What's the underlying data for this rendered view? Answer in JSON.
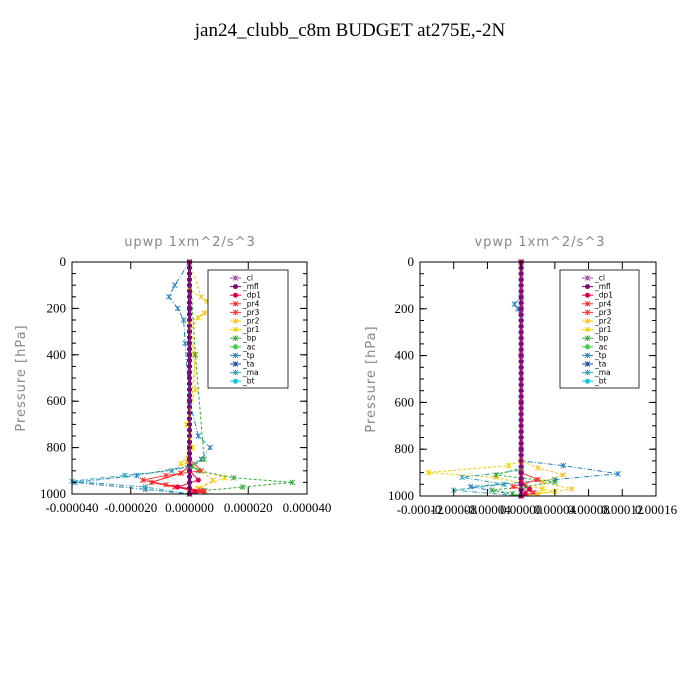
{
  "title": "jan24_clubb_c8m  BUDGET at275E,-2N",
  "ylabel": "Pressure [hPa]",
  "legend": [
    {
      "name": "_cl",
      "color": "#a64ca6",
      "marker": "+"
    },
    {
      "name": "_mfl",
      "color": "#7a0a7a",
      "marker": "o"
    },
    {
      "name": "_dp1",
      "color": "#e0004a",
      "marker": "o"
    },
    {
      "name": "_pr4",
      "color": "#ff2020",
      "marker": "*"
    },
    {
      "name": "_pr3",
      "color": "#ff3030",
      "marker": "x"
    },
    {
      "name": "_pr2",
      "color": "#ffc020",
      "marker": "x"
    },
    {
      "name": "_pr1",
      "color": "#f0d000",
      "marker": "*"
    },
    {
      "name": "_bp",
      "color": "#33aa33",
      "marker": "+"
    },
    {
      "name": "_ac",
      "color": "#44cc44",
      "marker": "o"
    },
    {
      "name": "_tp",
      "color": "#2080c0",
      "marker": "x"
    },
    {
      "name": "_ta",
      "color": "#1a4aa0",
      "marker": "+"
    },
    {
      "name": "_ma",
      "color": "#2aa0b0",
      "marker": "-"
    },
    {
      "name": "_bt",
      "color": "#00d0e0",
      "marker": "d"
    }
  ],
  "chart_data": [
    {
      "type": "line",
      "title": "upwp   1xm^2/s^3",
      "ylabel": "Pressure [hPa]",
      "ylim": [
        1000,
        0
      ],
      "xlim": [
        -4e-05,
        4e-05
      ],
      "xticks": [
        "-0.000040",
        "-0.000020",
        "0.000000",
        "0.000020",
        "0.000040"
      ],
      "yticks": [
        "0",
        "200",
        "400",
        "600",
        "800",
        "1000"
      ],
      "series": [
        {
          "name": "_cl",
          "x": [
            0,
            0,
            0,
            0,
            0,
            0
          ],
          "y": [
            0,
            200,
            400,
            600,
            800,
            1000
          ]
        },
        {
          "name": "_mfl",
          "x": [
            0,
            0,
            0,
            0,
            0,
            0
          ],
          "y": [
            0,
            200,
            400,
            600,
            800,
            1000
          ]
        },
        {
          "name": "_pr1",
          "x": [
            0,
            0,
            6e-06,
            8e-06,
            3e-06,
            0,
            1.5e-06,
            2e-06,
            -1e-06,
            1e-06,
            -3e-06,
            1.2e-05,
            3e-06,
            0
          ],
          "y": [
            0,
            120,
            170,
            200,
            240,
            300,
            400,
            550,
            700,
            800,
            870,
            930,
            975,
            1000
          ]
        },
        {
          "name": "_pr2",
          "x": [
            0,
            4e-06,
            7e-06,
            5e-06,
            0,
            2e-06,
            -1e-06,
            8e-06,
            3e-06,
            0
          ],
          "y": [
            0,
            150,
            190,
            220,
            260,
            400,
            860,
            940,
            980,
            1000
          ]
        },
        {
          "name": "_tp",
          "x": [
            0,
            -5e-06,
            -7e-06,
            -4e-06,
            -2e-06,
            -1.5e-06,
            0,
            3e-06,
            7e-06,
            4e-06,
            0,
            -1.8e-05,
            -3.9e-05,
            -1.5e-05,
            0
          ],
          "y": [
            0,
            100,
            150,
            200,
            250,
            350,
            600,
            750,
            800,
            850,
            880,
            920,
            950,
            980,
            1000
          ]
        },
        {
          "name": "_bp",
          "x": [
            0,
            2e-06,
            5e-06,
            1e-06,
            3e-06,
            1.5e-05,
            3.5e-05,
            1.8e-05,
            5e-06,
            0
          ],
          "y": [
            0,
            400,
            850,
            880,
            900,
            930,
            950,
            970,
            985,
            1000
          ]
        },
        {
          "name": "_pr3",
          "x": [
            0,
            0,
            4e-06,
            -8e-06,
            -1.6e-05,
            -8e-06,
            4e-06,
            0
          ],
          "y": [
            0,
            850,
            900,
            920,
            940,
            960,
            985,
            1000
          ]
        },
        {
          "name": "_pr4",
          "x": [
            0,
            0,
            -3e-06,
            -1.3e-05,
            -5e-06,
            5e-06,
            0
          ],
          "y": [
            0,
            880,
            910,
            950,
            970,
            990,
            1000
          ]
        },
        {
          "name": "_ma",
          "x": [
            0,
            0,
            -6e-06,
            -2.2e-05,
            -4e-05,
            -1.5e-05,
            0
          ],
          "y": [
            0,
            880,
            900,
            920,
            945,
            970,
            1000
          ]
        },
        {
          "name": "_dp1",
          "x": [
            0,
            0,
            3e-06,
            -4e-06,
            2e-06,
            0
          ],
          "y": [
            0,
            900,
            940,
            970,
            990,
            1000
          ]
        }
      ]
    },
    {
      "type": "line",
      "title": "vpwp   1xm^2/s^3",
      "ylabel": "Pressure [hPa]",
      "ylim": [
        1000,
        0
      ],
      "xlim": [
        -0.00012,
        0.00016
      ],
      "xticks": [
        "-0.00012",
        "-0.00008",
        "-0.00004",
        "0.00000",
        "0.00004",
        "0.00008",
        "0.00012",
        "0.00016"
      ],
      "yticks": [
        "0",
        "200",
        "400",
        "600",
        "800",
        "1000"
      ],
      "series": [
        {
          "name": "_cl",
          "x": [
            0,
            0,
            0,
            0,
            0,
            0
          ],
          "y": [
            0,
            200,
            400,
            600,
            800,
            1000
          ]
        },
        {
          "name": "_mfl",
          "x": [
            0,
            0,
            0,
            0,
            0,
            0
          ],
          "y": [
            0,
            200,
            400,
            600,
            800,
            1000
          ]
        },
        {
          "name": "_tp",
          "x": [
            0,
            0,
            -8e-06,
            -4e-06,
            0,
            0,
            5e-05,
            0.000115,
            4e-05,
            -6e-05,
            0
          ],
          "y": [
            0,
            150,
            180,
            200,
            240,
            850,
            870,
            905,
            930,
            960,
            1000
          ]
        },
        {
          "name": "_pr1",
          "x": [
            0,
            0,
            -1.5e-05,
            -0.00011,
            -3e-05,
            5e-06,
            2.5e-05,
            4e-05,
            0
          ],
          "y": [
            0,
            850,
            870,
            900,
            920,
            950,
            970,
            980,
            1000
          ]
        },
        {
          "name": "_pr2",
          "x": [
            0,
            0,
            2e-05,
            5e-05,
            2.5e-05,
            6e-05,
            2e-05,
            0
          ],
          "y": [
            0,
            850,
            880,
            910,
            940,
            970,
            990,
            1000
          ]
        },
        {
          "name": "_ma",
          "x": [
            0,
            0,
            -7e-05,
            -2e-05,
            -8e-05,
            0
          ],
          "y": [
            0,
            890,
            920,
            950,
            975,
            1000
          ]
        },
        {
          "name": "_bp",
          "x": [
            0,
            0,
            -3e-05,
            4e-05,
            5e-06,
            -3.5e-05,
            -1e-05,
            0
          ],
          "y": [
            0,
            880,
            910,
            940,
            960,
            975,
            990,
            1000
          ]
        },
        {
          "name": "_pr3",
          "x": [
            0,
            0,
            2e-05,
            -1e-05,
            1.5e-05,
            0
          ],
          "y": [
            0,
            900,
            930,
            960,
            985,
            1000
          ]
        },
        {
          "name": "_dp1",
          "x": [
            0,
            0,
            1e-05,
            5e-06,
            0
          ],
          "y": [
            0,
            940,
            970,
            990,
            1000
          ]
        }
      ]
    }
  ]
}
